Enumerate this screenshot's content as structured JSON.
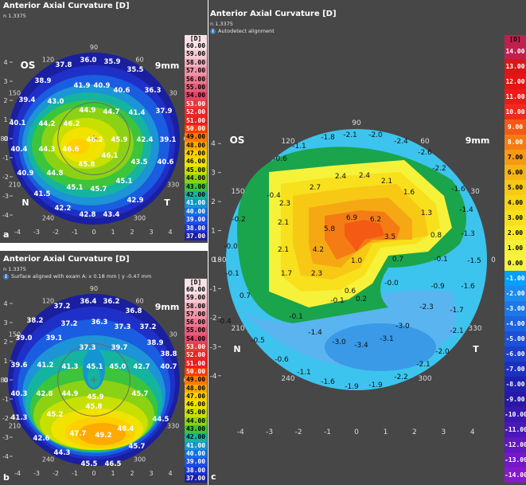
{
  "panel_a": {
    "title": "Anterior Axial Curvature  [D]",
    "subtitle": "n 1.3375",
    "label": "a",
    "eye": "OS",
    "zone": "9mm",
    "nasal": "N",
    "temporal": "T",
    "angles": [
      "90",
      "120",
      "60",
      "150",
      "30",
      "180",
      "0",
      "210",
      "330",
      "240",
      "300"
    ],
    "ticks_x": [
      "-4",
      "-3",
      "-2",
      "-1",
      "0",
      "1",
      "2",
      "3",
      "4"
    ],
    "ticks_y": [
      "4",
      "3",
      "2",
      "1",
      "0",
      "-1",
      "-2",
      "-3",
      "-4"
    ],
    "values": [
      "36.0",
      "35.9",
      "37.8",
      "35.5",
      "38.9",
      "41.9",
      "40.9",
      "40.6",
      "36.3",
      "39.4",
      "43.0",
      "37.9",
      "40.1",
      "44.9",
      "44.7",
      "41.4",
      "46.2",
      "44.2",
      "46.2",
      "45.9",
      "42.4",
      "39.1",
      "40.4",
      "46.6",
      "44.3",
      "46.1",
      "45.8",
      "43.5",
      "40.6",
      "44.8",
      "40.9",
      "45.1",
      "45.7",
      "45.1",
      "41.5",
      "42.9",
      "42.2",
      "42.8",
      "43.4"
    ]
  },
  "panel_b": {
    "title": "Anterior Axial Curvature  [D]",
    "subtitle": "n 1.3375",
    "note": "Surface aligned with exam A:  x 0.18 mm | y -0.47 mm",
    "label": "b",
    "zone": "9mm",
    "angles": [
      "90",
      "120",
      "60",
      "150",
      "30",
      "180",
      "0",
      "210",
      "330",
      "240",
      "300"
    ],
    "ticks_x": [
      "-4",
      "-3",
      "-2",
      "-1",
      "0",
      "1",
      "2",
      "3",
      "4"
    ],
    "ticks_y": [
      "4",
      "3",
      "2",
      "1",
      "0",
      "-1",
      "-2",
      "-3",
      "-4"
    ],
    "values": [
      "36.4",
      "36.2",
      "37.2",
      "36.8",
      "38.2",
      "37.2",
      "36.3",
      "37.3",
      "37.2",
      "39.0",
      "39.1",
      "38.9",
      "37.3",
      "39.7",
      "38.8",
      "39.6",
      "41.2",
      "41.3",
      "45.1",
      "45.0",
      "42.7",
      "40.7",
      "40.3",
      "42.8",
      "44.9",
      "45.9",
      "45.7",
      "41.3",
      "45.2",
      "45.8",
      "44.5",
      "42.6",
      "47.7",
      "49.2",
      "48.4",
      "45.7",
      "44.3",
      "45.5",
      "46.5"
    ]
  },
  "panel_c": {
    "title": "Anterior Axial Curvature  [D]",
    "subtitle": "n 1.3375",
    "note": "Autodetect alignment",
    "label": "c",
    "eye": "OS",
    "zone": "9mm",
    "nasal": "N",
    "temporal": "T",
    "angles": [
      "90",
      "120",
      "60",
      "150",
      "30",
      "180",
      "0",
      "210",
      "330",
      "240",
      "300"
    ],
    "ticks_x": [
      "-4",
      "-3",
      "-2",
      "-1",
      "0",
      "1",
      "2",
      "3",
      "4"
    ],
    "ticks_y": [
      "4",
      "3",
      "2",
      "1",
      "0",
      "-1",
      "-2",
      "-3",
      "-4"
    ],
    "values": [
      "-1.8",
      "-2.1",
      "-2.0",
      "-2.4",
      "-1.1",
      "-2.6",
      "-0.6",
      "-2.2",
      "2.4",
      "2.4",
      "2.1",
      "-1.6",
      "-0.4",
      "2.7",
      "1.6",
      "-1.4",
      "2.3",
      "1.3",
      "-0.2",
      "2.1",
      "6.9",
      "6.2",
      "-1.3",
      "5.8",
      "3.5",
      "0.8",
      "-0.0",
      "2.1",
      "4.2",
      "1.0",
      "0.7",
      "-0.1",
      "-1.5",
      "-0.1",
      "1.7",
      "2.3",
      "-0.0",
      "-0.9",
      "-1.6",
      "0.6",
      "0.7",
      "-0.1",
      "0.2",
      "-0.4",
      "-0.1",
      "-2.3",
      "-1.7",
      "-1.4",
      "-3.0",
      "-0.5",
      "-3.0",
      "-3.4",
      "-3.1",
      "-2.1",
      "-2.0",
      "-0.6",
      "-1.1",
      "-1.6",
      "-1.9",
      "-1.9",
      "-2.2",
      "-2.1"
    ]
  },
  "scale_ab": {
    "unit": "[D]",
    "labels": [
      "60.00",
      "59.00",
      "58.00",
      "57.00",
      "56.00",
      "55.00",
      "54.00",
      "53.00",
      "52.00",
      "51.00",
      "50.00",
      "49.00",
      "48.00",
      "47.00",
      "46.00",
      "45.00",
      "44.00",
      "43.00",
      "42.00",
      "41.00",
      "40.00",
      "39.00",
      "38.00",
      "37.00"
    ],
    "colors": [
      "#f8e2e8",
      "#f5c9d2",
      "#f1aebc",
      "#ee93a6",
      "#ea7891",
      "#e75c7a",
      "#e44466",
      "#e63a3a",
      "#ea2525",
      "#ee1c1c",
      "#ff3a00",
      "#ff7a00",
      "#ffaa00",
      "#ffd000",
      "#f2e200",
      "#c8e000",
      "#8cd214",
      "#3cc43c",
      "#14b4a0",
      "#1495d2",
      "#1270dc",
      "#1c4ee6",
      "#1832d2",
      "#1e1ea0"
    ]
  },
  "scale_c": {
    "unit": "[D]",
    "labels": [
      "14.00",
      "13.00",
      "12.00",
      "11.00",
      "10.00",
      "9.00",
      "8.00",
      "7.00",
      "6.00",
      "5.00",
      "4.00",
      "3.00",
      "2.00",
      "1.00",
      "0.00",
      "-1.00",
      "-2.00",
      "-3.00",
      "-4.00",
      "-5.00",
      "-6.00",
      "-7.00",
      "-8.00",
      "-9.00",
      "-10.00",
      "-11.00",
      "-12.00",
      "-13.00",
      "-14.00"
    ],
    "colors": [
      "#c02050",
      "#d81818",
      "#e61414",
      "#ee1a1a",
      "#f22a1e",
      "#f45a14",
      "#f57c14",
      "#f69a14",
      "#f6b414",
      "#f7c814",
      "#f7d614",
      "#f8e01c",
      "#f8ea28",
      "#f6f23a",
      "#f8f23c",
      "#00a0ff",
      "#1c8cf0",
      "#1c78e8",
      "#1c64e0",
      "#1c50d8",
      "#1c40cc",
      "#1c30c0",
      "#2020b0",
      "#2818a8",
      "#3a18b0",
      "#4a18b8",
      "#6018c0",
      "#7418c8",
      "#8818d0"
    ]
  }
}
